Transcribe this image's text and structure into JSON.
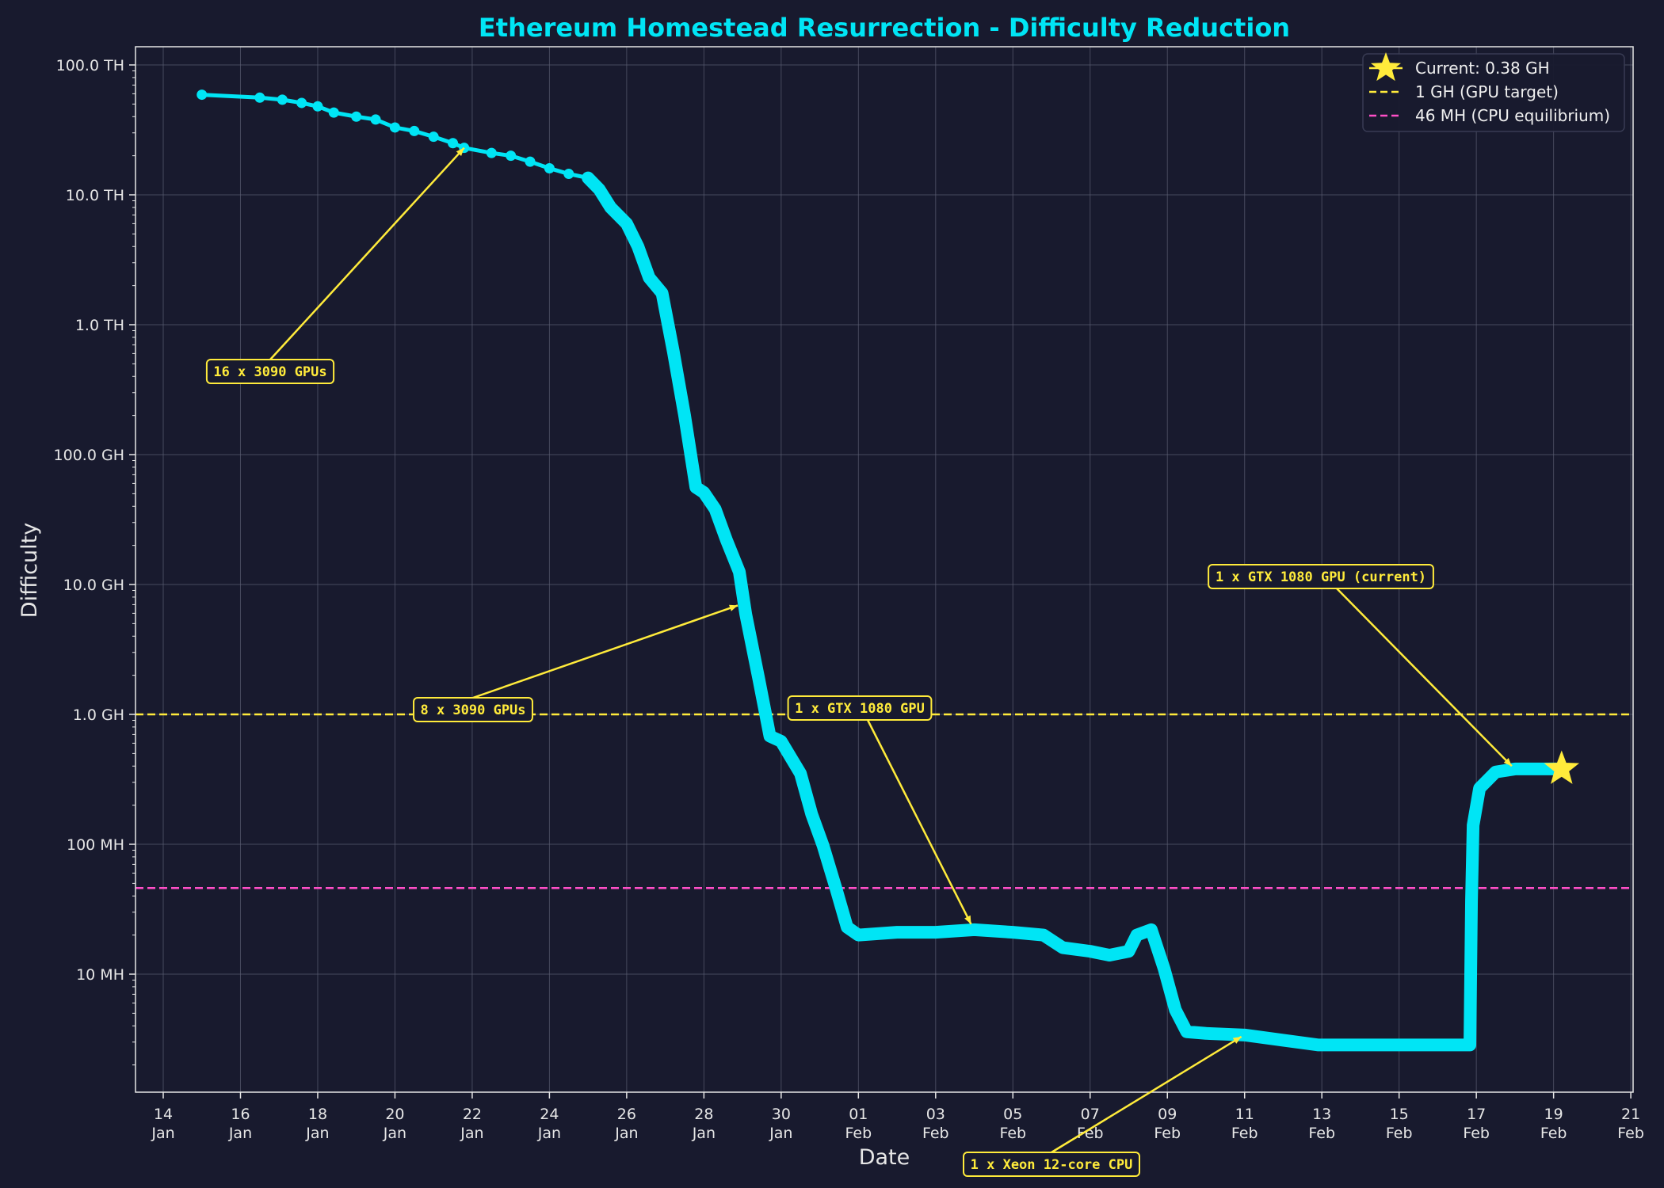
{
  "chart_data": {
    "type": "line",
    "title": "Ethereum Homestead Resurrection - Difficulty Reduction",
    "xlabel": "Date",
    "ylabel": "Difficulty",
    "yscale": "log",
    "ylim": [
      1250000.0,
      138000000000000.0
    ],
    "xlim": [
      "01-13T06:00",
      "02-21T03:00"
    ],
    "grid": true,
    "legend_position": "top-right",
    "x_ticks": [
      {
        "date": "01-14",
        "l1": "14",
        "l2": "Jan"
      },
      {
        "date": "01-16",
        "l1": "16",
        "l2": "Jan"
      },
      {
        "date": "01-18",
        "l1": "18",
        "l2": "Jan"
      },
      {
        "date": "01-20",
        "l1": "20",
        "l2": "Jan"
      },
      {
        "date": "01-22",
        "l1": "22",
        "l2": "Jan"
      },
      {
        "date": "01-24",
        "l1": "24",
        "l2": "Jan"
      },
      {
        "date": "01-26",
        "l1": "26",
        "l2": "Jan"
      },
      {
        "date": "01-28",
        "l1": "28",
        "l2": "Jan"
      },
      {
        "date": "01-30",
        "l1": "30",
        "l2": "Jan"
      },
      {
        "date": "02-01",
        "l1": "01",
        "l2": "Feb"
      },
      {
        "date": "02-03",
        "l1": "03",
        "l2": "Feb"
      },
      {
        "date": "02-05",
        "l1": "05",
        "l2": "Feb"
      },
      {
        "date": "02-07",
        "l1": "07",
        "l2": "Feb"
      },
      {
        "date": "02-09",
        "l1": "09",
        "l2": "Feb"
      },
      {
        "date": "02-11",
        "l1": "11",
        "l2": "Feb"
      },
      {
        "date": "02-13",
        "l1": "13",
        "l2": "Feb"
      },
      {
        "date": "02-15",
        "l1": "15",
        "l2": "Feb"
      },
      {
        "date": "02-17",
        "l1": "17",
        "l2": "Feb"
      },
      {
        "date": "02-19",
        "l1": "19",
        "l2": "Feb"
      },
      {
        "date": "02-21",
        "l1": "21",
        "l2": "Feb"
      }
    ],
    "y_ticks": [
      {
        "value": 100000000000000.0,
        "label": "100.0 TH"
      },
      {
        "value": 10000000000000.0,
        "label": "10.0 TH"
      },
      {
        "value": 1000000000000.0,
        "label": "1.0 TH"
      },
      {
        "value": 100000000000.0,
        "label": "100.0 GH"
      },
      {
        "value": 10000000000.0,
        "label": "10.0 GH"
      },
      {
        "value": 1000000000.0,
        "label": "1.0 GH"
      },
      {
        "value": 100000000.0,
        "label": "100 MH"
      },
      {
        "value": 10000000.0,
        "label": "10 MH"
      }
    ],
    "series": [
      {
        "color": "#00e5f5",
        "points": [
          [
            "01-15T00:00",
            59000000000000.0
          ],
          [
            "01-16T12:00",
            56000000000000.0
          ],
          [
            "01-17T02:00",
            54000000000000.0
          ],
          [
            "01-17T14:00",
            51000000000000.0
          ],
          [
            "01-18T00:00",
            48000000000000.0
          ],
          [
            "01-18T10:00",
            43000000000000.0
          ],
          [
            "01-19T00:00",
            40000000000000.0
          ],
          [
            "01-19T12:00",
            38000000000000.0
          ],
          [
            "01-20T00:00",
            33000000000000.0
          ],
          [
            "01-20T12:00",
            31000000000000.0
          ],
          [
            "01-21T00:00",
            28000000000000.0
          ],
          [
            "01-21T12:00",
            25000000000000.0
          ],
          [
            "01-21T19:00",
            23000000000000.0
          ],
          [
            "01-22T12:00",
            21000000000000.0
          ],
          [
            "01-23T00:00",
            20000000000000.0
          ],
          [
            "01-23T12:00",
            18000000000000.0
          ],
          [
            "01-24T00:00",
            16000000000000.0
          ],
          [
            "01-24T12:00",
            14500000000000.0
          ],
          [
            "01-25T00:00",
            13500000000000.0
          ],
          [
            "01-25T07:00",
            11000000000000.0
          ],
          [
            "01-25T14:00",
            8000000000000.0
          ],
          [
            "01-26T00:00",
            6000000000000.0
          ],
          [
            "01-26T07:00",
            4000000000000.0
          ],
          [
            "01-26T14:00",
            2300000000000.0
          ],
          [
            "01-26T22:00",
            1750000000000.0
          ],
          [
            "01-27T05:00",
            620000000000.0
          ],
          [
            "01-27T12:00",
            200000000000.0
          ],
          [
            "01-27T19:00",
            56000000000.0
          ],
          [
            "01-28T00:00",
            51000000000.0
          ],
          [
            "01-28T07:00",
            38000000000.0
          ],
          [
            "01-28T14:00",
            22000000000.0
          ],
          [
            "01-28T22:00",
            12500000000.0
          ],
          [
            "01-29T02:00",
            5900000000.0
          ],
          [
            "01-29T10:00",
            1900000000.0
          ],
          [
            "01-29T17:00",
            680000000.0
          ],
          [
            "01-30T00:00",
            620000000.0
          ],
          [
            "01-30T12:00",
            350000000.0
          ],
          [
            "01-30T19:00",
            170000000.0
          ],
          [
            "01-31T02:00",
            98000000.0
          ],
          [
            "01-31T10:00",
            46000000.0
          ],
          [
            "01-31T17:00",
            23000000.0
          ],
          [
            "02-01T00:00",
            20000000.0
          ],
          [
            "02-02T00:00",
            21000000.0
          ],
          [
            "02-03T00:00",
            21000000.0
          ],
          [
            "02-04T00:00",
            22000000.0
          ],
          [
            "02-05T00:00",
            21000000.0
          ],
          [
            "02-05T19:00",
            20000000.0
          ],
          [
            "02-06T07:00",
            16000000.0
          ],
          [
            "02-07T00:00",
            15000000.0
          ],
          [
            "02-07T12:00",
            14000000.0
          ],
          [
            "02-08T00:00",
            15000000.0
          ],
          [
            "02-08T05:00",
            20000000.0
          ],
          [
            "02-08T14:00",
            22000000.0
          ],
          [
            "02-08T22:00",
            11000000.0
          ],
          [
            "02-09T05:00",
            5300000.0
          ],
          [
            "02-09T12:00",
            3600000.0
          ],
          [
            "02-10T00:00",
            3500000.0
          ],
          [
            "02-11T00:00",
            3400000.0
          ],
          [
            "02-12T00:00",
            3100000.0
          ],
          [
            "02-12T22:00",
            2850000.0
          ],
          [
            "02-16T20:00",
            2850000.0
          ],
          [
            "02-16T21:00",
            37000000.0
          ],
          [
            "02-16T22:00",
            140000000.0
          ],
          [
            "02-17T02:00",
            270000000.0
          ],
          [
            "02-17T12:00",
            360000000.0
          ],
          [
            "02-18T00:00",
            380000000.0
          ],
          [
            "02-19T05:00",
            380000000.0
          ]
        ]
      }
    ],
    "current_marker": {
      "date": "02-19T05:00",
      "value": 380000000.0,
      "color": "#ffeb3b",
      "icon": "star"
    },
    "reference_lines": [
      {
        "value": 1000000000.0,
        "color": "#ffeb3b",
        "style": "dashed",
        "name": "1 GH (GPU target)"
      },
      {
        "value": 46000000.0,
        "color": "#ff4fc8",
        "style": "dashed",
        "name": "46 MH (CPU equilibrium)"
      }
    ],
    "legend": [
      {
        "label": "Current: 0.38 GH",
        "marker": "star",
        "color": "#ffeb3b"
      },
      {
        "label": "1 GH (GPU target)",
        "marker": "dashed",
        "color": "#ffeb3b"
      },
      {
        "label": "46 MH (CPU equilibrium)",
        "marker": "dashed",
        "color": "#ff4fc8"
      }
    ],
    "annotations": [
      {
        "text": "16 x 3090 GPUs",
        "date": "01-21T19:00",
        "value": 23000000000000.0
      },
      {
        "text": "8 x 3090 GPUs",
        "date": "01-28T21:00",
        "value": 6900000000.0
      },
      {
        "text": "1 x GTX 1080 GPU",
        "date": "02-03T22:00",
        "value": 24300000.0
      },
      {
        "text": "1 x GTX 1080 GPU (current)",
        "date": "02-17T22:00",
        "value": 400000000.0
      },
      {
        "text": "1 x Xeon 12-core CPU",
        "date": "02-10T22:00",
        "value": 3300000.0
      }
    ]
  }
}
